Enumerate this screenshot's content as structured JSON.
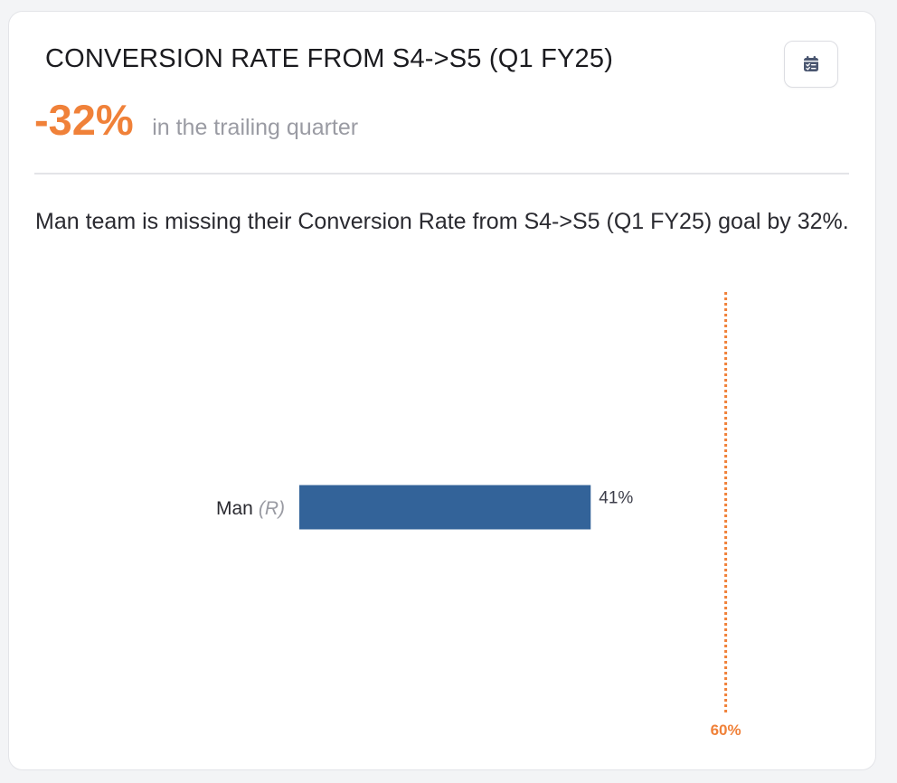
{
  "card": {
    "title": "CONVERSION RATE FROM S4->S5 (Q1 FY25)",
    "kpi_value": "-32%",
    "kpi_caption": "in the trailing quarter",
    "summary": "Man team is missing their Conversion Rate from S4->S5 (Q1 FY25) goal by 32%.",
    "icon": "calendar-checklist-icon"
  },
  "colors": {
    "accent": "#f08139",
    "bar": "#336399",
    "text_dark": "#2a2a30",
    "text_muted": "#9a9ba3"
  },
  "chart_data": {
    "type": "bar",
    "orientation": "horizontal",
    "categories": [
      "Man"
    ],
    "category_tags": [
      "(R)"
    ],
    "values": [
      41
    ],
    "value_labels": [
      "41%"
    ],
    "unit": "%",
    "target": {
      "value": 60,
      "label": "60%"
    },
    "xlim": [
      0,
      65
    ],
    "grid": false
  }
}
